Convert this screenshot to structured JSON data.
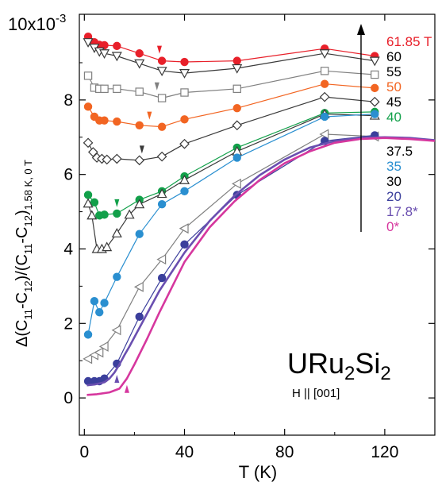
{
  "chart_data": {
    "type": "line",
    "xlabel": "T (K)",
    "ylabel": "Δ(C11-C12)/(C11-C12) 1.58 K, 0 T",
    "ylabel_parts": {
      "pre": "Δ(C",
      "s1": "11",
      "m1": "-C",
      "s2": "12",
      "m2": ")/(C",
      "s3": "11",
      "m3": "-C",
      "s4": "12",
      "m4": ")",
      "s5": "1.58 K, 0 T"
    },
    "y_exponent_label": {
      "base": "10x10",
      "exp": "-3"
    },
    "xlim": [
      -2,
      140
    ],
    "ylim": [
      -1,
      10.3
    ],
    "x_ticks": [
      0,
      40,
      80,
      120
    ],
    "y_ticks": [
      0,
      2,
      4,
      6,
      8
    ],
    "grid": false,
    "annotation_title": {
      "a": "URu",
      "sub": "2",
      "b": "Si",
      "sub2": "2"
    },
    "annotation_field": "H || [001]",
    "arrow_note": "field increasing upward",
    "series": [
      {
        "name": "61.85 T",
        "color": "#e8202a",
        "marker": "circle",
        "fill": true,
        "x": [
          1.5,
          4,
          6,
          8,
          13,
          22,
          31,
          40,
          61,
          96,
          116
        ],
        "y": [
          9.7,
          9.55,
          9.48,
          9.47,
          9.45,
          9.25,
          9.05,
          9.02,
          9.05,
          9.38,
          9.18
        ],
        "arrow_at": 30
      },
      {
        "name": "60",
        "color": "#3a3a3a",
        "marker": "triangle-down",
        "fill": false,
        "x": [
          1.5,
          4,
          6,
          8,
          13,
          22,
          31,
          40,
          61,
          96,
          116
        ],
        "y": [
          9.55,
          9.4,
          9.3,
          9.25,
          9.18,
          8.98,
          8.78,
          8.72,
          8.85,
          9.25,
          9.05
        ]
      },
      {
        "name": "55",
        "color": "#808080",
        "marker": "square",
        "fill": false,
        "x": [
          1.5,
          4,
          6,
          8,
          13,
          22,
          31,
          40,
          61,
          96,
          116
        ],
        "y": [
          8.65,
          8.33,
          8.3,
          8.3,
          8.3,
          8.22,
          8.05,
          8.2,
          8.3,
          8.78,
          8.68
        ],
        "arrow_at": 29
      },
      {
        "name": "50",
        "color": "#f26522",
        "marker": "circle",
        "fill": true,
        "x": [
          1.5,
          4,
          6,
          8,
          13,
          22,
          31,
          40,
          61,
          96,
          116
        ],
        "y": [
          7.82,
          7.55,
          7.45,
          7.45,
          7.42,
          7.32,
          7.28,
          7.48,
          7.78,
          8.43,
          8.32
        ],
        "arrow_at": 26
      },
      {
        "name": "45",
        "color": "#3a3a3a",
        "marker": "diamond",
        "fill": false,
        "x": [
          1.5,
          3.5,
          5,
          7,
          9,
          13,
          22,
          31,
          40,
          61,
          96,
          116
        ],
        "y": [
          6.85,
          6.6,
          6.45,
          6.42,
          6.4,
          6.42,
          6.38,
          6.48,
          6.82,
          7.32,
          8.08,
          7.95
        ],
        "arrow_at": 23
      },
      {
        "name": "40",
        "color": "#12a04a",
        "marker": "circle",
        "fill": true,
        "x": [
          1.5,
          4,
          6,
          8,
          13,
          22,
          31,
          40,
          61,
          96,
          116
        ],
        "y": [
          5.45,
          5.25,
          4.9,
          4.92,
          4.95,
          5.32,
          5.55,
          5.95,
          6.72,
          7.65,
          7.68
        ],
        "arrow_at": 13
      },
      {
        "name": "37.5",
        "color": "#3a3a3a",
        "marker": "triangle-up",
        "fill": false,
        "x": [
          1.5,
          3,
          5,
          7,
          9,
          13,
          18,
          22,
          31,
          40,
          61,
          96,
          116
        ],
        "y": [
          5.22,
          4.9,
          4.0,
          4.0,
          4.05,
          4.42,
          4.92,
          5.2,
          5.48,
          5.85,
          6.62,
          7.62,
          7.58
        ]
      },
      {
        "name": "35",
        "color": "#2a8fd0",
        "marker": "circle",
        "fill": true,
        "x": [
          1.5,
          4,
          6,
          8,
          13,
          22,
          31,
          40,
          61,
          96,
          116
        ],
        "y": [
          1.7,
          2.6,
          2.3,
          2.55,
          3.25,
          4.4,
          5.2,
          5.55,
          6.45,
          7.55,
          7.62
        ]
      },
      {
        "name": "30",
        "color": "#808080",
        "marker": "triangle-left",
        "fill": false,
        "x": [
          1.5,
          4,
          6,
          8,
          13,
          22,
          31,
          40,
          61,
          96,
          116
        ],
        "y": [
          1.05,
          1.15,
          1.22,
          1.38,
          1.82,
          2.98,
          3.72,
          4.55,
          5.75,
          7.08,
          7.02
        ]
      },
      {
        "name": "20",
        "color": "#3b3f9c",
        "marker": "circle",
        "fill": true,
        "x": [
          1.5,
          4,
          6,
          8,
          13,
          22,
          31,
          40,
          61,
          96,
          116
        ],
        "y": [
          0.45,
          0.45,
          0.45,
          0.52,
          0.92,
          2.18,
          3.22,
          4.12,
          5.45,
          6.9,
          7.05
        ]
      },
      {
        "name": "17.8*",
        "color": "#6a4fb0",
        "marker": "none",
        "fill": false,
        "arrow_at": 13,
        "arrow_up": true,
        "x": [
          1,
          4,
          8,
          10,
          12,
          14,
          16,
          18,
          22,
          30,
          40,
          50,
          60,
          70,
          80,
          90,
          100,
          110,
          120,
          130,
          140
        ],
        "y": [
          0.34,
          0.36,
          0.42,
          0.52,
          0.68,
          0.9,
          1.15,
          1.38,
          1.88,
          2.88,
          3.9,
          4.75,
          5.43,
          5.98,
          6.4,
          6.72,
          6.9,
          6.98,
          7.0,
          6.98,
          6.92
        ]
      },
      {
        "name": "0*",
        "color": "#d6379e",
        "marker": "none",
        "fill": false,
        "arrow_at": 17,
        "arrow_up": true,
        "x": [
          1,
          5,
          10,
          14,
          17,
          20,
          25,
          30,
          40,
          50,
          60,
          70,
          80,
          90,
          100,
          110,
          120,
          130,
          140
        ],
        "y": [
          0.08,
          0.1,
          0.15,
          0.25,
          0.52,
          0.9,
          1.58,
          2.3,
          3.65,
          4.58,
          5.28,
          5.85,
          6.3,
          6.62,
          6.85,
          6.95,
          6.98,
          6.95,
          6.9
        ]
      }
    ]
  }
}
